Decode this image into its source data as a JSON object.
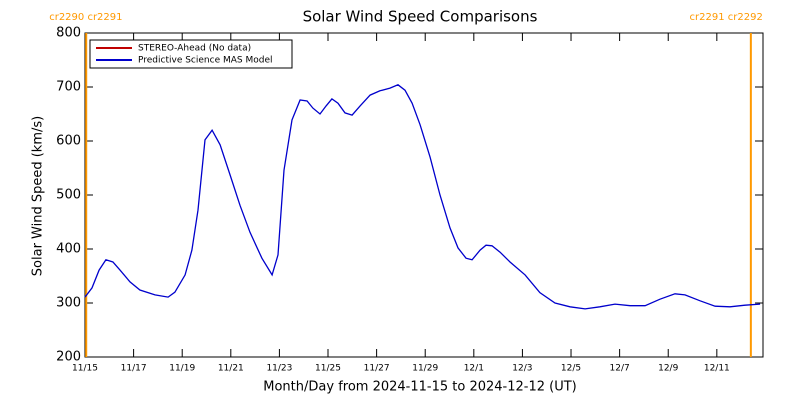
{
  "chart_data": {
    "type": "line",
    "title": "Solar Wind Speed Comparisons",
    "x_label": "Month/Day from 2024-11-15 to 2024-12-12 (UT)",
    "y_label": "Solar Wind Speed (km/s)",
    "xlim": [
      0,
      27.9
    ],
    "ylim": [
      200,
      800
    ],
    "yticks": [
      200,
      300,
      400,
      500,
      600,
      700,
      800
    ],
    "xticks": [
      {
        "value": 0,
        "label": "11/15"
      },
      {
        "value": 2,
        "label": "11/17"
      },
      {
        "value": 4,
        "label": "11/19"
      },
      {
        "value": 6,
        "label": "11/21"
      },
      {
        "value": 8,
        "label": "11/23"
      },
      {
        "value": 10,
        "label": "11/25"
      },
      {
        "value": 12,
        "label": "11/27"
      },
      {
        "value": 14,
        "label": "11/29"
      },
      {
        "value": 16,
        "label": "12/1"
      },
      {
        "value": 18,
        "label": "12/3"
      },
      {
        "value": 20,
        "label": "12/5"
      },
      {
        "value": 22,
        "label": "12/7"
      },
      {
        "value": 24,
        "label": "12/9"
      },
      {
        "value": 26,
        "label": "12/11"
      }
    ],
    "x": [
      0,
      0.29,
      0.58,
      0.86,
      1.15,
      1.44,
      1.85,
      2.26,
      2.88,
      3.42,
      3.7,
      4.12,
      4.4,
      4.65,
      4.94,
      5.23,
      5.56,
      5.97,
      6.38,
      6.79,
      7.28,
      7.7,
      7.94,
      8.19,
      8.52,
      8.85,
      9.14,
      9.38,
      9.67,
      9.92,
      10.16,
      10.41,
      10.7,
      10.99,
      11.32,
      11.73,
      12.14,
      12.55,
      12.88,
      13.17,
      13.46,
      13.79,
      14.2,
      14.61,
      15.02,
      15.35,
      15.68,
      15.93,
      16.26,
      16.5,
      16.75,
      17.08,
      17.49,
      18.11,
      18.72,
      19.34,
      19.96,
      20.58,
      21.19,
      21.81,
      22.43,
      23.05,
      23.66,
      24.28,
      24.69,
      25.31,
      25.93,
      26.54,
      27.16,
      27.78
    ],
    "series": [
      {
        "name": "STEREO-Ahead (No data)",
        "color": "#c00000",
        "values": [
          null,
          null,
          null,
          null,
          null,
          null,
          null,
          null,
          null,
          null,
          null,
          null,
          null,
          null,
          null,
          null,
          null,
          null,
          null,
          null,
          null,
          null,
          null,
          null,
          null,
          null,
          null,
          null,
          null,
          null,
          null,
          null,
          null,
          null,
          null,
          null,
          null,
          null,
          null,
          null,
          null,
          null,
          null,
          null,
          null,
          null,
          null,
          null,
          null,
          null,
          null,
          null,
          null,
          null,
          null,
          null,
          null,
          null,
          null,
          null,
          null,
          null,
          null,
          null,
          null,
          null,
          null,
          null,
          null,
          null
        ]
      },
      {
        "name": "Predictive Science MAS Model",
        "color": "#0000cc",
        "values": [
          311,
          328,
          361,
          380,
          376,
          361,
          339,
          324,
          315,
          311,
          320,
          352,
          398,
          472,
          602,
          620,
          593,
          537,
          481,
          431,
          383,
          352,
          389,
          546,
          639,
          676,
          674,
          661,
          650,
          665,
          678,
          670,
          652,
          648,
          665,
          685,
          693,
          698,
          704,
          694,
          670,
          630,
          570,
          500,
          439,
          402,
          383,
          380,
          398,
          407,
          406,
          394,
          376,
          352,
          319,
          300,
          293,
          289,
          293,
          298,
          295,
          295,
          307,
          317,
          315,
          304,
          294,
          293,
          296,
          298
        ]
      }
    ],
    "annotations": [
      {
        "text": "cr2290 cr2291",
        "x": 0.05
      },
      {
        "text": "cr2291 cr2292",
        "x": 27.4
      }
    ],
    "annotation_color": "#ff9900"
  }
}
